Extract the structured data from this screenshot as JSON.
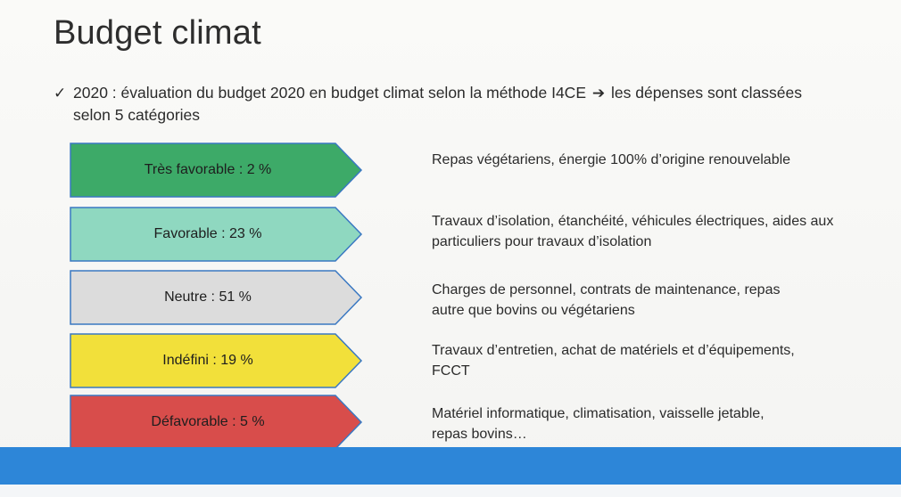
{
  "title": "Budget climat",
  "intro": {
    "check_icon": "✓",
    "text_part1": "2020 : évaluation du budget 2020 en budget climat selon la méthode I4CE",
    "arrow_icon": "➔",
    "text_part2": "les dépenses sont classées",
    "line2": "selon 5 catégories"
  },
  "categories": [
    {
      "label": "Très favorable : 2 %",
      "color": "#3daa68",
      "description_lines": [
        "Repas végétariens, énergie 100% d’origine renouvelable"
      ]
    },
    {
      "label": "Favorable : 23 %",
      "color": "#8fd8c0",
      "description_lines": [
        "Travaux d’isolation, étanchéité, véhicules électriques, aides aux",
        "particuliers pour travaux d’isolation"
      ]
    },
    {
      "label": "Neutre : 51 %",
      "color": "#dcdcdc",
      "description_lines": [
        "Charges de personnel, contrats de maintenance, repas",
        "autre que bovins ou végétariens"
      ]
    },
    {
      "label": "Indéfini : 19 %",
      "color": "#f2e03a",
      "description_lines": [
        "Travaux d’entretien, achat de matériels et d’équipements,",
        "FCCT"
      ]
    },
    {
      "label": "Défavorable : 5 %",
      "color": "#d84d4b",
      "description_lines": [
        "Matériel informatique, climatisation, vaisselle jetable,",
        "repas bovins…"
      ]
    }
  ],
  "colors": {
    "arrow_border": "#3a78c2",
    "bottom_bar": "#2d86d8"
  }
}
